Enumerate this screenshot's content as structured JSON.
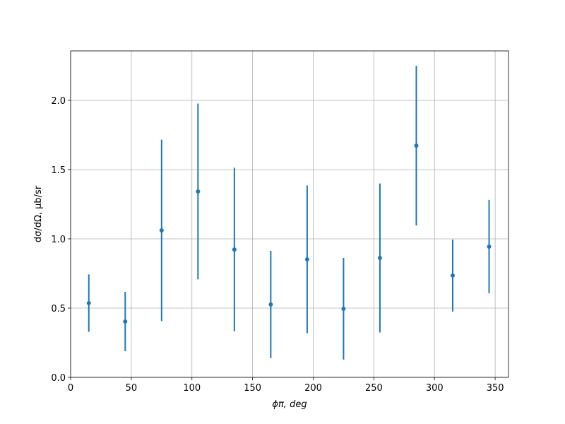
{
  "chart_data": {
    "type": "errorbar",
    "xlabel": "ϕπ, deg",
    "ylabel": "dσ/dΩ, μb/sr",
    "x": [
      15,
      45,
      75,
      105,
      135,
      165,
      195,
      225,
      255,
      285,
      315,
      345
    ],
    "series": [
      {
        "color": "#1f77b4",
        "values": [
          0.536,
          0.403,
          1.061,
          1.342,
          0.923,
          0.526,
          0.852,
          0.495,
          0.862,
          1.673,
          0.735,
          0.944
        ],
        "errors": [
          0.207,
          0.214,
          0.655,
          0.635,
          0.59,
          0.387,
          0.533,
          0.367,
          0.538,
          0.577,
          0.26,
          0.337
        ]
      }
    ],
    "xlim": [
      0,
      361
    ],
    "ylim": [
      0,
      2.357
    ],
    "xticks": [
      0,
      50,
      100,
      150,
      200,
      250,
      300,
      350
    ],
    "yticks": [
      {
        "value": 0,
        "label": "0.0"
      },
      0.5,
      {
        "value": 1,
        "label": "1.0"
      },
      1.5,
      {
        "value": 2,
        "label": "2.0"
      }
    ],
    "grid": true
  }
}
